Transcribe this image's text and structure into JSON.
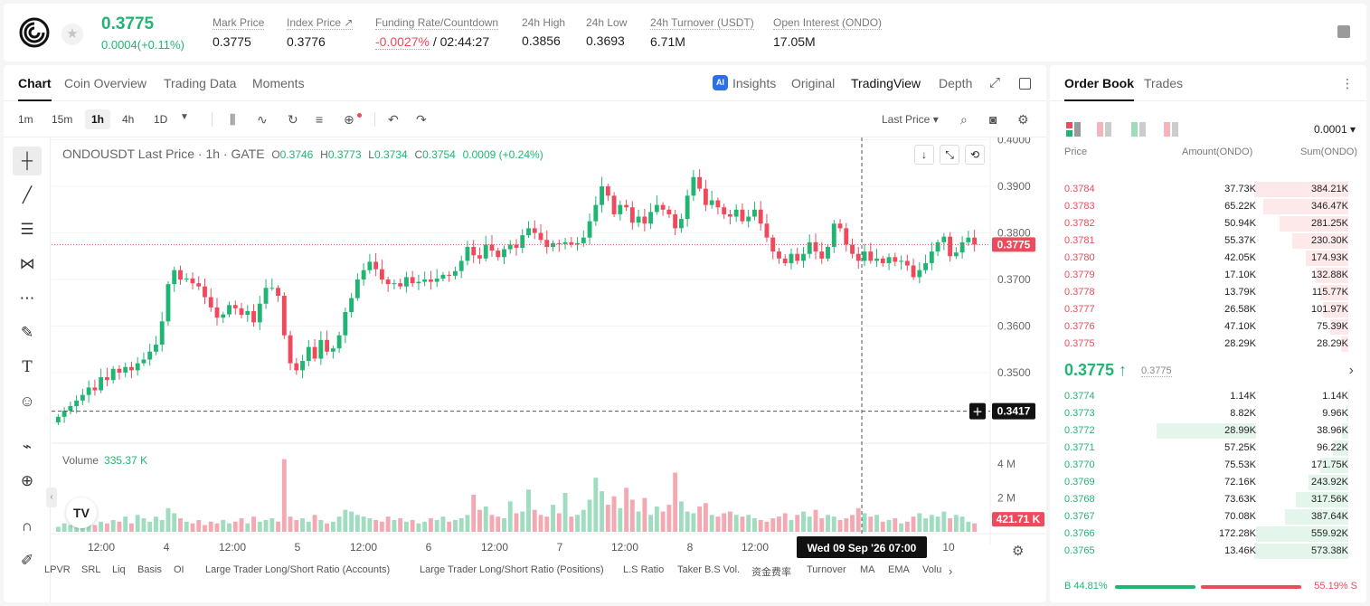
{
  "ticker": {
    "last_price": "0.3775",
    "change": "0.0004(+0.11%)"
  },
  "stats": [
    {
      "label": "Mark Price",
      "value": "0.3775"
    },
    {
      "label": "Index Price ↗",
      "value": "0.3776"
    },
    {
      "label": "Funding Rate/Countdown",
      "value_red": "-0.0027%",
      "value": " / 02:44:27"
    },
    {
      "label": "24h High",
      "value": "0.3856"
    },
    {
      "label": "24h Low",
      "value": "0.3693"
    },
    {
      "label": "24h Turnover (USDT)",
      "value": "6.71M"
    },
    {
      "label": "Open Interest (ONDO)",
      "value": "17.05M"
    }
  ],
  "chart_tabs": [
    "Chart",
    "Coin Overview",
    "Trading Data",
    "Moments"
  ],
  "view_tabs": [
    "Insights",
    "Original",
    "TradingView",
    "Depth"
  ],
  "timeframes": [
    "1m",
    "15m",
    "1h",
    "4h",
    "1D"
  ],
  "price_source": "Last Price ▾",
  "legend": {
    "symbol": "ONDOUSDT Last Price · 1h · GATE",
    "o_label": "O",
    "o": "0.3746",
    "h_label": "H",
    "h": "0.3773",
    "l_label": "L",
    "l": "0.3734",
    "c_label": "C",
    "c": "0.3754",
    "chg": "0.0009 (+0.24%)"
  },
  "volume_legend": {
    "label": "Volume",
    "value": "335.37 K"
  },
  "indicators": [
    "LPVR",
    "SRL",
    "Liq",
    "Basis",
    "OI",
    "Large Trader Long/Short Ratio (Accounts)",
    "Large Trader Long/Short Ratio (Positions)",
    "L.S Ratio",
    "Taker B.S Vol.",
    "资金费率",
    "Turnover",
    "MA",
    "EMA",
    "Volu"
  ],
  "crosshair": {
    "price_label": "0.3417",
    "time_label": "Wed 09 Sep '26   07:00"
  },
  "current_price_label": "0.3775",
  "volume_current_label": "421.71 K",
  "chart_data": {
    "type": "candlestick",
    "price_axis": [
      "0.4000",
      "0.3900",
      "0.3800",
      "0.3700",
      "0.3600",
      "0.3500"
    ],
    "price_range": [
      0.336,
      0.4005
    ],
    "volume_axis": [
      "4 M",
      "2 M"
    ],
    "x_ticks": [
      "12:00",
      "4",
      "12:00",
      "5",
      "12:00",
      "6",
      "12:00",
      "7",
      "12:00",
      "8",
      "12:00",
      "10"
    ],
    "closes": [
      0.3405,
      0.3418,
      0.3428,
      0.344,
      0.3452,
      0.3468,
      0.3462,
      0.349,
      0.3484,
      0.3508,
      0.35,
      0.3512,
      0.3505,
      0.352,
      0.3528,
      0.3545,
      0.356,
      0.361,
      0.369,
      0.372,
      0.37,
      0.3702,
      0.3692,
      0.3685,
      0.3662,
      0.364,
      0.3618,
      0.3625,
      0.3645,
      0.3638,
      0.3624,
      0.3632,
      0.3608,
      0.3648,
      0.3682,
      0.3682,
      0.3665,
      0.358,
      0.352,
      0.3505,
      0.3525,
      0.3555,
      0.353,
      0.357,
      0.3545,
      0.3552,
      0.358,
      0.363,
      0.366,
      0.37,
      0.372,
      0.3738,
      0.3722,
      0.37,
      0.369,
      0.3692,
      0.3685,
      0.3705,
      0.3692,
      0.3695,
      0.37,
      0.3695,
      0.3702,
      0.371,
      0.3708,
      0.3718,
      0.374,
      0.377,
      0.3752,
      0.3745,
      0.3775,
      0.3762,
      0.3748,
      0.3765,
      0.3775,
      0.3768,
      0.3795,
      0.381,
      0.38,
      0.3785,
      0.377,
      0.3778,
      0.3776,
      0.378,
      0.3775,
      0.3778,
      0.379,
      0.3825,
      0.386,
      0.39,
      0.388,
      0.384,
      0.386,
      0.3855,
      0.3822,
      0.3835,
      0.382,
      0.3845,
      0.386,
      0.385,
      0.384,
      0.381,
      0.383,
      0.388,
      0.392,
      0.3895,
      0.386,
      0.387,
      0.3855,
      0.384,
      0.3835,
      0.385,
      0.3825,
      0.3835,
      0.385,
      0.382,
      0.379,
      0.376,
      0.3745,
      0.3735,
      0.3755,
      0.374,
      0.3755,
      0.378,
      0.376,
      0.3745,
      0.377,
      0.382,
      0.381,
      0.3775,
      0.3755,
      0.374,
      0.376,
      0.374,
      0.3745,
      0.3735,
      0.3748,
      0.3738,
      0.374,
      0.373,
      0.3705,
      0.372,
      0.3735,
      0.376,
      0.378,
      0.3792,
      0.375,
      0.3758,
      0.378,
      0.379,
      0.3775
    ],
    "volumes": [
      0.3,
      0.5,
      0.4,
      0.6,
      0.5,
      0.8,
      0.4,
      0.6,
      0.5,
      0.7,
      0.6,
      0.9,
      0.5,
      1.0,
      0.8,
      0.6,
      0.9,
      0.7,
      1.4,
      1.1,
      0.8,
      0.6,
      0.5,
      0.7,
      0.4,
      0.6,
      0.5,
      0.7,
      0.5,
      0.6,
      0.8,
      0.5,
      0.9,
      0.6,
      0.7,
      0.8,
      0.6,
      4.3,
      0.9,
      0.7,
      0.8,
      0.6,
      1.0,
      0.7,
      0.5,
      0.6,
      0.9,
      1.3,
      1.2,
      1.0,
      0.9,
      0.8,
      0.7,
      0.6,
      0.9,
      0.7,
      0.8,
      0.6,
      0.7,
      0.5,
      0.6,
      0.8,
      0.7,
      0.9,
      0.6,
      0.7,
      0.8,
      1.0,
      2.2,
      1.3,
      1.5,
      1.0,
      0.9,
      0.8,
      1.8,
      1.1,
      1.2,
      2.5,
      1.3,
      1.0,
      0.9,
      1.6,
      1.1,
      2.3,
      0.9,
      1.0,
      1.3,
      1.9,
      3.2,
      2.4,
      1.6,
      2.1,
      1.4,
      2.6,
      1.9,
      1.2,
      2.0,
      1.0,
      1.5,
      1.2,
      1.6,
      3.5,
      1.8,
      1.2,
      1.1,
      1.5,
      1.7,
      1.0,
      0.9,
      1.1,
      1.2,
      1.0,
      0.9,
      1.0,
      0.8,
      0.7,
      0.6,
      0.8,
      0.9,
      1.1,
      0.7,
      1.0,
      1.2,
      0.9,
      1.3,
      0.8,
      1.0,
      0.9,
      0.7,
      0.8,
      1.0,
      1.4,
      1.1,
      0.9,
      1.0,
      0.6,
      0.7,
      0.8,
      0.5,
      0.6,
      0.9,
      1.1,
      0.8,
      1.0,
      0.9,
      1.2,
      0.8,
      1.0,
      0.9,
      0.6,
      0.5
    ]
  },
  "orderbook": {
    "tabs": [
      "Order Book",
      "Trades"
    ],
    "precision": "0.0001 ▾",
    "headers": [
      "Price",
      "Amount(ONDO)",
      "Sum(ONDO)"
    ],
    "colors": {
      "ask": "#ef4a5c",
      "bid": "#21b573",
      "ask_bg": "#fde8ea",
      "bid_bg": "#e4f6ec"
    },
    "asks": [
      {
        "price": "0.3784",
        "amount": "37.73K",
        "sum": "384.21K",
        "depth": 1.0
      },
      {
        "price": "0.3783",
        "amount": "65.22K",
        "sum": "346.47K",
        "depth": 0.9
      },
      {
        "price": "0.3782",
        "amount": "50.94K",
        "sum": "281.25K",
        "depth": 0.73
      },
      {
        "price": "0.3781",
        "amount": "55.37K",
        "sum": "230.30K",
        "depth": 0.6
      },
      {
        "price": "0.3780",
        "amount": "42.05K",
        "sum": "174.93K",
        "depth": 0.455
      },
      {
        "price": "0.3779",
        "amount": "17.10K",
        "sum": "132.88K",
        "depth": 0.346
      },
      {
        "price": "0.3778",
        "amount": "13.79K",
        "sum": "115.77K",
        "depth": 0.301
      },
      {
        "price": "0.3777",
        "amount": "26.58K",
        "sum": "101.97K",
        "depth": 0.265
      },
      {
        "price": "0.3776",
        "amount": "47.10K",
        "sum": "75.39K",
        "depth": 0.196
      },
      {
        "price": "0.3775",
        "amount": "28.29K",
        "sum": "28.29K",
        "depth": 0.074
      }
    ],
    "mid_price": "0.3775 ↑",
    "mid_ref": "0.3775",
    "bids": [
      {
        "price": "0.3774",
        "amount": "1.14K",
        "sum": "1.14K",
        "depth": 0.002
      },
      {
        "price": "0.3773",
        "amount": "8.82K",
        "sum": "9.96K",
        "depth": 0.017
      },
      {
        "price": "0.3772",
        "amount": "28.99K",
        "sum": "38.96K",
        "depth": 0.068,
        "highlight": true
      },
      {
        "price": "0.3771",
        "amount": "57.25K",
        "sum": "96.22K",
        "depth": 0.168
      },
      {
        "price": "0.3770",
        "amount": "75.53K",
        "sum": "171.75K",
        "depth": 0.3
      },
      {
        "price": "0.3769",
        "amount": "72.16K",
        "sum": "243.92K",
        "depth": 0.425
      },
      {
        "price": "0.3768",
        "amount": "73.63K",
        "sum": "317.56K",
        "depth": 0.554
      },
      {
        "price": "0.3767",
        "amount": "70.08K",
        "sum": "387.64K",
        "depth": 0.676
      },
      {
        "price": "0.3766",
        "amount": "172.28K",
        "sum": "559.92K",
        "depth": 0.977
      },
      {
        "price": "0.3765",
        "amount": "13.46K",
        "sum": "573.38K",
        "depth": 1.0
      }
    ],
    "buy_ratio": "B 44.81%",
    "sell_ratio": "55.19% S",
    "buy_fraction": 0.4481
  }
}
